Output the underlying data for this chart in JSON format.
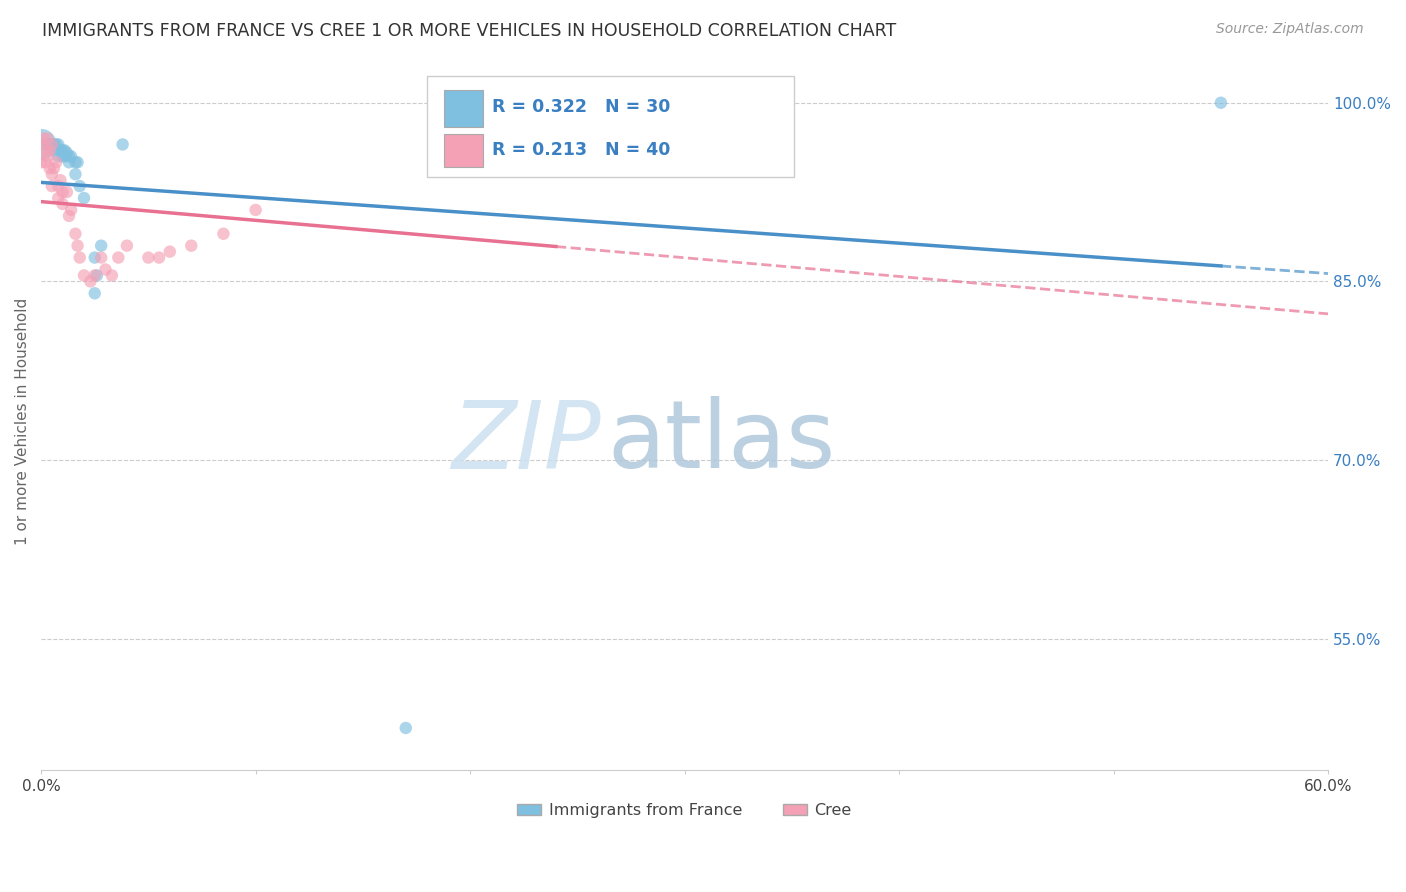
{
  "title": "IMMIGRANTS FROM FRANCE VS CREE 1 OR MORE VEHICLES IN HOUSEHOLD CORRELATION CHART",
  "source": "Source: ZipAtlas.com",
  "ylabel": "1 or more Vehicles in Household",
  "legend_label1": "Immigrants from France",
  "legend_label2": "Cree",
  "R1": 0.322,
  "N1": 30,
  "R2": 0.213,
  "N2": 40,
  "color_blue": "#7fbfdf",
  "color_pink": "#f4a0b5",
  "trendline_blue": "#4a90c8",
  "trendline_pink": "#e87090",
  "xrange": [
    0.0,
    0.6
  ],
  "yrange": [
    0.44,
    1.025
  ],
  "ytick_vals": [
    1.0,
    0.85,
    0.7,
    0.55
  ],
  "ytick_labels": [
    "100.0%",
    "85.0%",
    "70.0%",
    "55.0%"
  ],
  "xtick_vals": [
    0.0,
    0.1,
    0.2,
    0.3,
    0.4,
    0.5,
    0.6
  ],
  "xtick_labels": [
    "0.0%",
    "",
    "",
    "",
    "",
    "",
    "60.0%"
  ],
  "blue_points": [
    [
      0.0,
      0.965
    ],
    [
      0.003,
      0.965
    ],
    [
      0.004,
      0.965
    ],
    [
      0.005,
      0.965
    ],
    [
      0.006,
      0.965
    ],
    [
      0.006,
      0.96
    ],
    [
      0.007,
      0.965
    ],
    [
      0.008,
      0.965
    ],
    [
      0.008,
      0.955
    ],
    [
      0.009,
      0.96
    ],
    [
      0.01,
      0.96
    ],
    [
      0.01,
      0.955
    ],
    [
      0.011,
      0.96
    ],
    [
      0.011,
      0.955
    ],
    [
      0.012,
      0.958
    ],
    [
      0.013,
      0.955
    ],
    [
      0.013,
      0.95
    ],
    [
      0.014,
      0.955
    ],
    [
      0.016,
      0.95
    ],
    [
      0.016,
      0.94
    ],
    [
      0.017,
      0.95
    ],
    [
      0.018,
      0.93
    ],
    [
      0.02,
      0.92
    ],
    [
      0.025,
      0.87
    ],
    [
      0.025,
      0.84
    ],
    [
      0.026,
      0.855
    ],
    [
      0.028,
      0.88
    ],
    [
      0.038,
      0.965
    ],
    [
      0.55,
      1.0
    ],
    [
      0.17,
      0.475
    ]
  ],
  "blue_sizes": [
    500,
    80,
    80,
    80,
    80,
    80,
    80,
    80,
    80,
    80,
    80,
    80,
    80,
    80,
    80,
    80,
    80,
    80,
    80,
    80,
    80,
    80,
    80,
    80,
    80,
    80,
    80,
    80,
    80,
    80
  ],
  "pink_points": [
    [
      0.0,
      0.965
    ],
    [
      0.0,
      0.95
    ],
    [
      0.001,
      0.97
    ],
    [
      0.002,
      0.96
    ],
    [
      0.002,
      0.95
    ],
    [
      0.003,
      0.97
    ],
    [
      0.003,
      0.955
    ],
    [
      0.004,
      0.96
    ],
    [
      0.004,
      0.945
    ],
    [
      0.005,
      0.965
    ],
    [
      0.005,
      0.94
    ],
    [
      0.005,
      0.93
    ],
    [
      0.006,
      0.945
    ],
    [
      0.007,
      0.95
    ],
    [
      0.008,
      0.93
    ],
    [
      0.008,
      0.92
    ],
    [
      0.009,
      0.935
    ],
    [
      0.01,
      0.925
    ],
    [
      0.01,
      0.915
    ],
    [
      0.012,
      0.925
    ],
    [
      0.013,
      0.905
    ],
    [
      0.014,
      0.91
    ],
    [
      0.016,
      0.89
    ],
    [
      0.017,
      0.88
    ],
    [
      0.018,
      0.87
    ],
    [
      0.02,
      0.855
    ],
    [
      0.023,
      0.85
    ],
    [
      0.025,
      0.855
    ],
    [
      0.028,
      0.87
    ],
    [
      0.03,
      0.86
    ],
    [
      0.033,
      0.855
    ],
    [
      0.036,
      0.87
    ],
    [
      0.04,
      0.88
    ],
    [
      0.05,
      0.87
    ],
    [
      0.055,
      0.87
    ],
    [
      0.06,
      0.875
    ],
    [
      0.07,
      0.88
    ],
    [
      0.085,
      0.89
    ],
    [
      0.1,
      0.91
    ],
    [
      0.24,
      0.96
    ]
  ],
  "pink_sizes": [
    80,
    80,
    80,
    80,
    80,
    80,
    80,
    80,
    80,
    80,
    80,
    80,
    80,
    80,
    80,
    80,
    80,
    80,
    80,
    80,
    80,
    80,
    80,
    80,
    80,
    80,
    80,
    80,
    80,
    80,
    80,
    80,
    80,
    80,
    80,
    80,
    80,
    80,
    80,
    80
  ],
  "watermark_zip": "ZIP",
  "watermark_atlas": "atlas",
  "watermark_color_zip": "#c8dff0",
  "watermark_color_atlas": "#b8c8d8"
}
